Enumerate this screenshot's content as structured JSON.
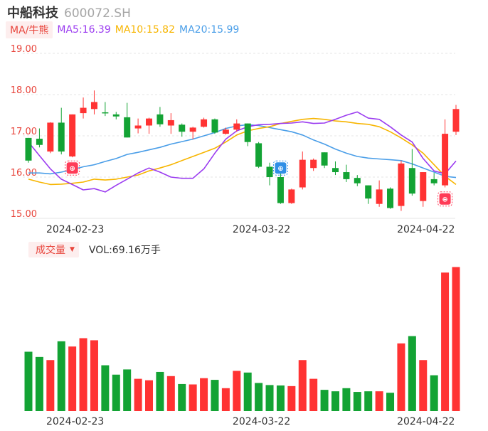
{
  "header": {
    "name": "中船科技",
    "code": "600072.SH"
  },
  "ma_legend": {
    "selector": "MA/牛熊",
    "ma5": "MA5:16.39",
    "ma10": "MA10:15.82",
    "ma20": "MA20:15.99"
  },
  "volume_legend": {
    "selector": "成交量",
    "value": "VOL:69.16万手"
  },
  "colors": {
    "up": "#ff3333",
    "down": "#13a334",
    "ma5": "#9b3cf0",
    "ma10": "#f7b500",
    "ma20": "#4a9ee8",
    "grid": "#e6e6e6",
    "axis_text": "#e8453c"
  },
  "chart_data": [
    {
      "type": "candlestick",
      "y_axis_labels": [
        "19.00",
        "18.00",
        "17.00",
        "16.00",
        "15.00"
      ],
      "ylim": [
        15.0,
        19.0
      ],
      "x_tick_labels": [
        "2024-02-23",
        "2024-03-22",
        "2024-04-22"
      ],
      "grid": true,
      "candles": [
        {
          "o": 16.95,
          "c": 16.4,
          "h": 16.95,
          "l": 16.35
        },
        {
          "o": 16.93,
          "c": 16.78,
          "h": 17.18,
          "l": 16.72
        },
        {
          "o": 16.62,
          "c": 17.32,
          "h": 17.33,
          "l": 16.58
        },
        {
          "o": 17.32,
          "c": 16.62,
          "h": 17.68,
          "l": 16.55
        },
        {
          "o": 16.5,
          "c": 17.52,
          "h": 17.52,
          "l": 16.48
        },
        {
          "o": 17.55,
          "c": 17.68,
          "h": 17.93,
          "l": 17.42
        },
        {
          "o": 17.65,
          "c": 17.82,
          "h": 18.1,
          "l": 17.52
        },
        {
          "o": 17.57,
          "c": 17.55,
          "h": 17.82,
          "l": 17.48
        },
        {
          "o": 17.52,
          "c": 17.47,
          "h": 17.58,
          "l": 17.4
        },
        {
          "o": 17.45,
          "c": 16.96,
          "h": 17.8,
          "l": 16.96
        },
        {
          "o": 17.18,
          "c": 17.25,
          "h": 17.42,
          "l": 17.06
        },
        {
          "o": 17.25,
          "c": 17.42,
          "h": 17.44,
          "l": 17.05
        },
        {
          "o": 17.52,
          "c": 17.28,
          "h": 17.7,
          "l": 17.22
        },
        {
          "o": 17.25,
          "c": 17.38,
          "h": 17.55,
          "l": 17.05
        },
        {
          "o": 17.27,
          "c": 17.1,
          "h": 17.3,
          "l": 16.98
        },
        {
          "o": 17.1,
          "c": 17.2,
          "h": 17.22,
          "l": 16.92
        },
        {
          "o": 17.22,
          "c": 17.4,
          "h": 17.44,
          "l": 17.2
        },
        {
          "o": 17.4,
          "c": 17.08,
          "h": 17.42,
          "l": 17.05
        },
        {
          "o": 17.05,
          "c": 17.15,
          "h": 17.2,
          "l": 17.03
        },
        {
          "o": 17.15,
          "c": 17.3,
          "h": 17.4,
          "l": 17.1
        },
        {
          "o": 17.3,
          "c": 16.85,
          "h": 17.3,
          "l": 16.75
        },
        {
          "o": 16.82,
          "c": 16.25,
          "h": 16.85,
          "l": 16.22
        },
        {
          "o": 16.25,
          "c": 16.0,
          "h": 16.35,
          "l": 15.8
        },
        {
          "o": 16.0,
          "c": 15.37,
          "h": 16.25,
          "l": 15.35
        },
        {
          "o": 15.37,
          "c": 15.7,
          "h": 15.72,
          "l": 15.35
        },
        {
          "o": 15.75,
          "c": 16.42,
          "h": 16.62,
          "l": 15.7
        },
        {
          "o": 16.22,
          "c": 16.42,
          "h": 16.45,
          "l": 16.15
        },
        {
          "o": 16.6,
          "c": 16.28,
          "h": 16.6,
          "l": 16.22
        },
        {
          "o": 16.22,
          "c": 16.12,
          "h": 16.38,
          "l": 16.05
        },
        {
          "o": 16.12,
          "c": 15.95,
          "h": 16.3,
          "l": 15.88
        },
        {
          "o": 15.98,
          "c": 15.85,
          "h": 16.05,
          "l": 15.78
        },
        {
          "o": 15.8,
          "c": 15.48,
          "h": 15.8,
          "l": 15.35
        },
        {
          "o": 15.35,
          "c": 15.7,
          "h": 15.92,
          "l": 15.28
        },
        {
          "o": 15.72,
          "c": 15.25,
          "h": 15.75,
          "l": 15.23
        },
        {
          "o": 15.3,
          "c": 16.33,
          "h": 16.4,
          "l": 15.18
        },
        {
          "o": 16.22,
          "c": 15.6,
          "h": 16.68,
          "l": 15.55
        },
        {
          "o": 15.42,
          "c": 16.12,
          "h": 16.12,
          "l": 15.28
        },
        {
          "o": 15.95,
          "c": 15.85,
          "h": 16.1,
          "l": 15.8
        },
        {
          "o": 15.8,
          "c": 17.05,
          "h": 17.4,
          "l": 15.75
        },
        {
          "o": 17.1,
          "c": 17.65,
          "h": 17.75,
          "l": 17.02
        }
      ],
      "ma5": [
        16.85,
        16.52,
        16.2,
        15.95,
        15.82,
        15.69,
        15.72,
        15.64,
        15.8,
        15.95,
        16.1,
        16.22,
        16.12,
        16.0,
        15.97,
        15.97,
        16.2,
        16.58,
        16.92,
        17.12,
        17.22,
        17.27,
        17.28,
        17.3,
        17.31,
        17.34,
        17.3,
        17.31,
        17.4,
        17.5,
        17.58,
        17.43,
        17.4,
        17.22,
        17.02,
        16.85,
        16.45,
        16.15,
        16.08,
        16.39
      ],
      "ma10": [
        15.95,
        15.88,
        15.82,
        15.83,
        15.85,
        15.88,
        15.95,
        15.93,
        15.95,
        16.0,
        16.05,
        16.15,
        16.22,
        16.3,
        16.4,
        16.5,
        16.6,
        16.7,
        16.85,
        17.02,
        17.12,
        17.18,
        17.22,
        17.3,
        17.35,
        17.4,
        17.42,
        17.4,
        17.36,
        17.34,
        17.3,
        17.28,
        17.22,
        17.1,
        16.95,
        16.78,
        16.58,
        16.3,
        16.02,
        15.82
      ],
      "ma20": [
        16.1,
        16.1,
        16.08,
        16.12,
        16.18,
        16.25,
        16.3,
        16.38,
        16.45,
        16.55,
        16.6,
        16.66,
        16.72,
        16.8,
        16.86,
        16.92,
        17.0,
        17.08,
        17.18,
        17.24,
        17.27,
        17.25,
        17.2,
        17.15,
        17.1,
        17.02,
        16.9,
        16.8,
        16.68,
        16.58,
        16.5,
        16.46,
        16.44,
        16.42,
        16.4,
        16.32,
        16.22,
        16.12,
        16.02,
        15.99
      ]
    },
    {
      "type": "bar",
      "title": "成交量",
      "value_label": "VOL:69.16万手",
      "ylim": [
        0,
        70
      ],
      "x_tick_labels": [
        "2024-02-23",
        "2024-03-22",
        "2024-04-22"
      ],
      "values": [
        28.5,
        26.0,
        24.5,
        33.5,
        31.0,
        35.0,
        34.0,
        22.0,
        17.5,
        20.0,
        15.5,
        14.8,
        18.8,
        16.8,
        13.0,
        12.8,
        15.8,
        15.0,
        11.0,
        19.3,
        18.5,
        13.5,
        12.5,
        12.3,
        12.0,
        24.5,
        15.5,
        10.2,
        9.5,
        11.0,
        9.2,
        9.5,
        9.5,
        8.8,
        32.5,
        36.0,
        24.5,
        17.2,
        66.5,
        69.16
      ]
    }
  ]
}
